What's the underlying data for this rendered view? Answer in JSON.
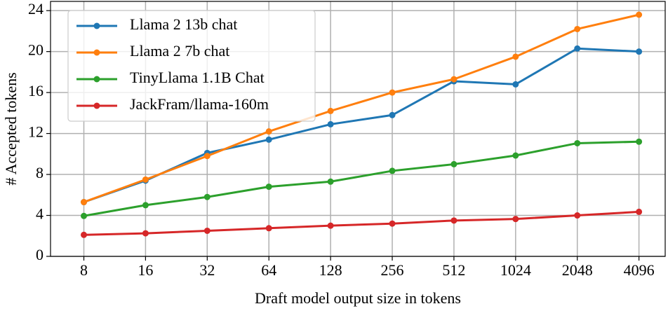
{
  "chart_data": {
    "type": "line",
    "x_label": "Draft model output size in tokens",
    "y_label": "# Accepted tokens",
    "x": [
      8,
      16,
      32,
      64,
      128,
      256,
      512,
      1024,
      2048,
      4096
    ],
    "xscale": "log",
    "xlim": [
      5.5,
      5500
    ],
    "xticks": [
      8,
      16,
      32,
      64,
      128,
      256,
      512,
      1024,
      2048,
      4096
    ],
    "ylim": [
      0,
      24.9
    ],
    "yticks": [
      0,
      4,
      8,
      12,
      16,
      20,
      24
    ],
    "grid": true,
    "legend": "upper-left",
    "series": [
      {
        "name": "Llama 2 13b chat",
        "color": "#1f77b4",
        "values": [
          5.3,
          7.4,
          10.1,
          11.4,
          12.9,
          13.8,
          17.1,
          16.8,
          20.3,
          20.0
        ]
      },
      {
        "name": "Llama 2 7b chat",
        "color": "#ff7f0e",
        "values": [
          5.3,
          7.5,
          9.8,
          12.2,
          14.2,
          16.0,
          17.3,
          19.5,
          22.2,
          23.6
        ]
      },
      {
        "name": "TinyLlama 1.1B Chat",
        "color": "#2ca02c",
        "values": [
          3.95,
          5.0,
          5.8,
          6.8,
          7.3,
          8.35,
          9.0,
          9.85,
          11.05,
          11.2
        ]
      },
      {
        "name": "JackFram/llama-160m",
        "color": "#d62728",
        "values": [
          2.1,
          2.25,
          2.5,
          2.75,
          3.0,
          3.2,
          3.5,
          3.65,
          4.0,
          4.35
        ]
      }
    ]
  }
}
